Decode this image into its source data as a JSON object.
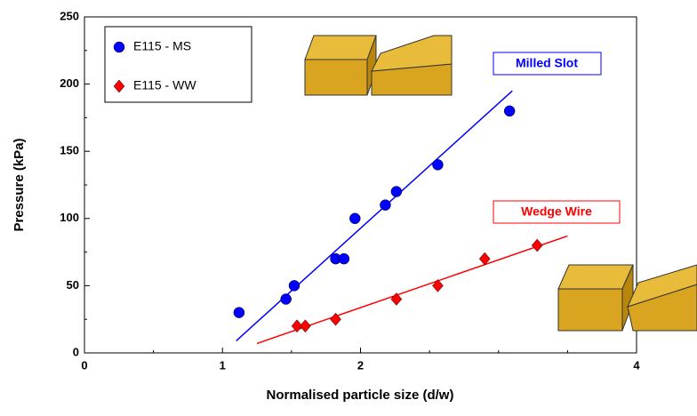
{
  "chart_data": {
    "type": "scatter",
    "xlabel": "Normalised particle size (d/w)",
    "ylabel": "Pressure (kPa)",
    "xlim": [
      0,
      4
    ],
    "xticks": [
      0,
      1,
      2,
      4
    ],
    "xminor": [
      0.5,
      1.5,
      2.5,
      3,
      3.5
    ],
    "ylim": [
      0,
      250
    ],
    "yticks": [
      0,
      50,
      100,
      150,
      200,
      250
    ],
    "yminor": [
      25,
      75,
      125,
      175,
      225
    ],
    "legend": "upper left",
    "series": [
      {
        "name": "E115 - MS",
        "color": "#0000ff",
        "marker": "circle",
        "x": [
          1.12,
          1.46,
          1.52,
          1.82,
          1.88,
          1.96,
          2.18,
          2.26,
          2.56,
          3.08
        ],
        "values": [
          30,
          40,
          50,
          70,
          70,
          100,
          110,
          120,
          140,
          180
        ],
        "fit": {
          "x": [
            1.1,
            3.1
          ],
          "values": [
            9,
            195
          ]
        }
      },
      {
        "name": "E115 - WW",
        "color": "#ff0000",
        "marker": "diamond",
        "x": [
          1.54,
          1.6,
          1.82,
          2.26,
          2.56,
          2.9,
          3.28
        ],
        "values": [
          20,
          20,
          25,
          40,
          50,
          70,
          80
        ],
        "fit": {
          "x": [
            1.25,
            3.5
          ],
          "values": [
            7,
            87
          ]
        }
      }
    ],
    "annotations": [
      {
        "text": "Milled Slot",
        "color": "#0000ff"
      },
      {
        "text": "Wedge Wire",
        "color": "#ff0000"
      }
    ]
  }
}
